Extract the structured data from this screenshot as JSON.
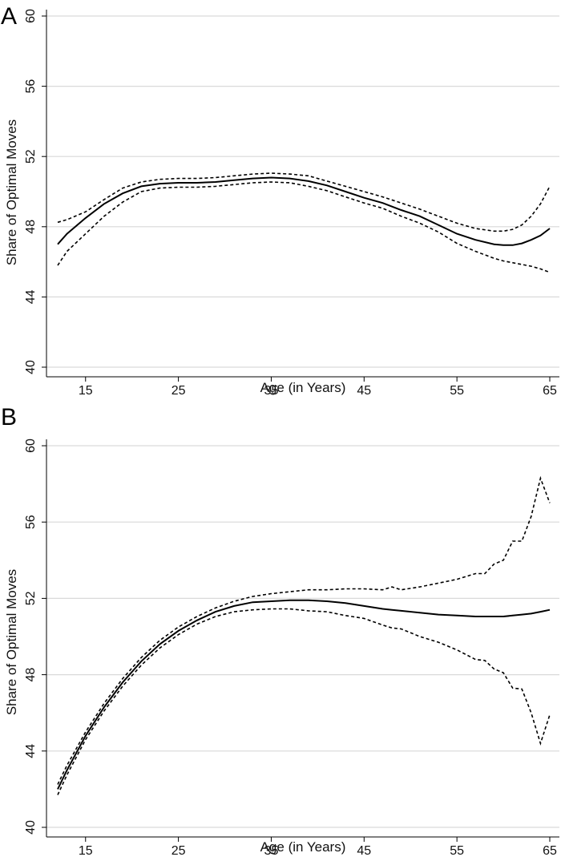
{
  "chart_data": [
    {
      "type": "line",
      "panel_label": "A",
      "xlabel": "Age (in Years)",
      "ylabel": "Share of Optimal Moves",
      "xlim": [
        12,
        65
      ],
      "ylim": [
        40,
        60
      ],
      "xticks": [
        15,
        25,
        35,
        45,
        55,
        65
      ],
      "yticks": [
        40,
        44,
        48,
        52,
        56,
        60
      ],
      "grid": true,
      "x": [
        12,
        13,
        15,
        17,
        19,
        21,
        23,
        25,
        27,
        29,
        31,
        33,
        35,
        37,
        39,
        41,
        43,
        45,
        47,
        49,
        51,
        53,
        55,
        57,
        59,
        60,
        61,
        62,
        63,
        64,
        65
      ],
      "series": [
        {
          "style": "solid",
          "values": [
            47.0,
            47.6,
            48.5,
            49.3,
            49.9,
            50.3,
            50.45,
            50.5,
            50.5,
            50.55,
            50.65,
            50.75,
            50.8,
            50.75,
            50.6,
            50.35,
            50.0,
            49.65,
            49.35,
            48.95,
            48.6,
            48.1,
            47.6,
            47.25,
            47.0,
            46.95,
            46.95,
            47.05,
            47.25,
            47.5,
            47.9
          ]
        },
        {
          "style": "dashed",
          "values": [
            48.25,
            48.4,
            48.85,
            49.55,
            50.2,
            50.55,
            50.7,
            50.75,
            50.75,
            50.8,
            50.9,
            51.0,
            51.05,
            51.0,
            50.9,
            50.6,
            50.3,
            50.0,
            49.7,
            49.35,
            49.0,
            48.6,
            48.2,
            47.9,
            47.75,
            47.75,
            47.85,
            48.1,
            48.6,
            49.3,
            50.3
          ]
        },
        {
          "style": "dashed",
          "values": [
            45.8,
            46.6,
            47.6,
            48.6,
            49.4,
            50.0,
            50.2,
            50.25,
            50.25,
            50.3,
            50.4,
            50.5,
            50.55,
            50.5,
            50.3,
            50.05,
            49.7,
            49.35,
            49.05,
            48.6,
            48.2,
            47.7,
            47.05,
            46.6,
            46.2,
            46.05,
            45.95,
            45.85,
            45.75,
            45.6,
            45.4
          ]
        }
      ]
    },
    {
      "type": "line",
      "panel_label": "B",
      "xlabel": "Age (in Years)",
      "ylabel": "Share of Optimal Moves",
      "xlim": [
        12,
        65
      ],
      "ylim": [
        40,
        60
      ],
      "xticks": [
        15,
        25,
        35,
        45,
        55,
        65
      ],
      "yticks": [
        40,
        44,
        48,
        52,
        56,
        60
      ],
      "grid": true,
      "x": [
        12,
        13,
        15,
        17,
        19,
        21,
        23,
        25,
        27,
        29,
        31,
        33,
        35,
        37,
        39,
        41,
        43,
        45,
        47,
        48,
        49,
        51,
        53,
        55,
        57,
        58,
        59,
        60,
        61,
        62,
        63,
        64,
        65
      ],
      "series": [
        {
          "style": "solid",
          "values": [
            42.0,
            43.0,
            44.8,
            46.3,
            47.6,
            48.7,
            49.6,
            50.3,
            50.85,
            51.3,
            51.6,
            51.8,
            51.85,
            51.9,
            51.9,
            51.85,
            51.75,
            51.6,
            51.45,
            51.4,
            51.35,
            51.25,
            51.15,
            51.1,
            51.05,
            51.05,
            51.05,
            51.05,
            51.1,
            51.15,
            51.2,
            51.3,
            51.4
          ]
        },
        {
          "style": "dashed",
          "values": [
            42.25,
            43.25,
            45.0,
            46.5,
            47.8,
            48.9,
            49.8,
            50.5,
            51.05,
            51.5,
            51.85,
            52.1,
            52.25,
            52.35,
            52.45,
            52.45,
            52.5,
            52.5,
            52.45,
            52.6,
            52.45,
            52.6,
            52.8,
            53.0,
            53.3,
            53.3,
            53.8,
            54.0,
            55.0,
            55.0,
            56.3,
            58.3,
            57.0
          ]
        },
        {
          "style": "dashed",
          "values": [
            41.7,
            42.75,
            44.6,
            46.1,
            47.4,
            48.5,
            49.4,
            50.1,
            50.65,
            51.05,
            51.3,
            51.4,
            51.45,
            51.45,
            51.35,
            51.3,
            51.1,
            50.95,
            50.6,
            50.45,
            50.4,
            50.0,
            49.7,
            49.3,
            48.8,
            48.75,
            48.3,
            48.1,
            47.3,
            47.25,
            46.0,
            44.4,
            45.9
          ]
        }
      ]
    }
  ]
}
